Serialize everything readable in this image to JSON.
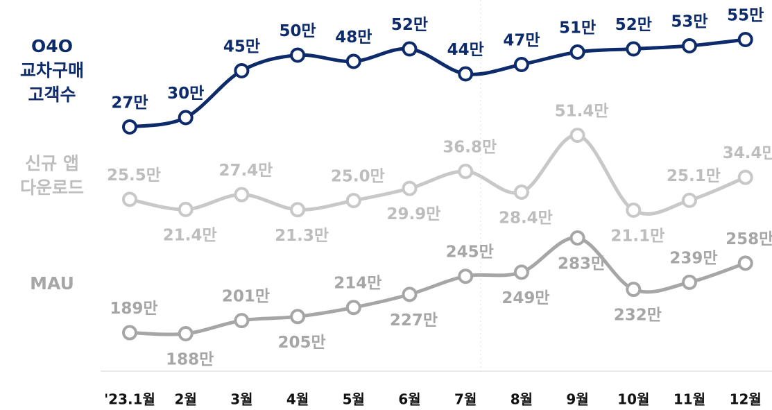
{
  "chart_data": {
    "type": "line",
    "categories": [
      "'23.1월",
      "2월",
      "3월",
      "4월",
      "5월",
      "6월",
      "7월",
      "8월",
      "9월",
      "10월",
      "11월",
      "12월"
    ],
    "series": [
      {
        "name": "O4O\n교차구매\n고객수",
        "color": "#0d2a6b",
        "values": [
          27,
          30,
          45,
          50,
          48,
          52,
          44,
          47,
          51,
          52,
          53,
          55
        ],
        "value_labels": [
          "27만",
          "30만",
          "45만",
          "50만",
          "48만",
          "52만",
          "44만",
          "47만",
          "51만",
          "52만",
          "53만",
          "55만"
        ]
      },
      {
        "name": "신규 앱\n다운로드",
        "color": "#c8c8c8",
        "values": [
          25.5,
          21.4,
          27.4,
          21.3,
          25.0,
          29.9,
          36.8,
          28.4,
          51.4,
          21.1,
          25.1,
          34.4
        ],
        "value_labels": [
          "25.5만",
          "21.4만",
          "27.4만",
          "21.3만",
          "25.0만",
          "29.9만",
          "36.8만",
          "28.4만",
          "51.4만",
          "21.1만",
          "25.1만",
          "34.4만"
        ]
      },
      {
        "name": "MAU",
        "color": "#a6a6a6",
        "values": [
          189,
          188,
          201,
          205,
          214,
          227,
          245,
          249,
          283,
          232,
          239,
          258
        ],
        "value_labels": [
          "189만",
          "188만",
          "201만",
          "205만",
          "214만",
          "227만",
          "245만",
          "249만",
          "283만",
          "232만",
          "239만",
          "258만"
        ]
      }
    ]
  }
}
